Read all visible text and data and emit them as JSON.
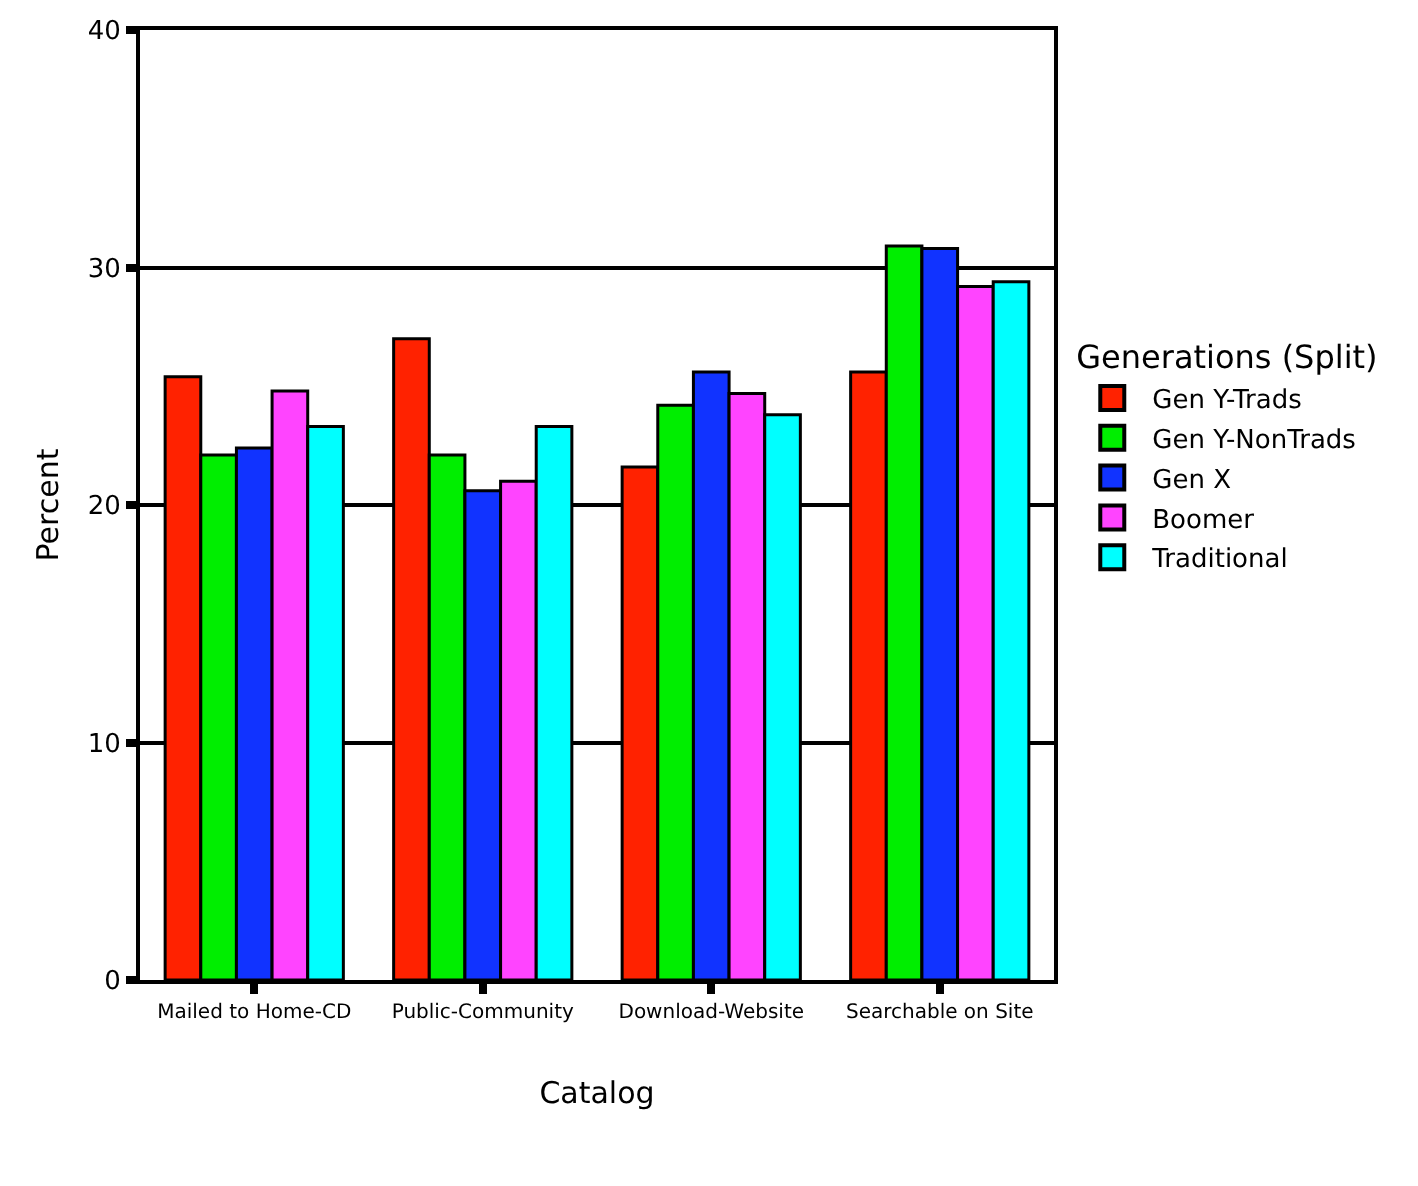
{
  "chart_data": {
    "type": "bar",
    "xlabel": "Catalog",
    "ylabel": "Percent",
    "legend_title": "Generations (Split)",
    "categories": [
      "Mailed to Home-CD",
      "Public-Community",
      "Download-Website",
      "Searchable on Site"
    ],
    "series": [
      {
        "name": "Gen Y-Trads",
        "color": "#ff2200",
        "values": [
          25.4,
          27.0,
          21.6,
          25.6
        ]
      },
      {
        "name": "Gen Y-NonTrads",
        "color": "#00ee00",
        "values": [
          22.1,
          22.1,
          24.2,
          30.9
        ]
      },
      {
        "name": "Gen X",
        "color": "#1133ff",
        "values": [
          22.4,
          20.6,
          25.6,
          30.8
        ]
      },
      {
        "name": "Boomer",
        "color": "#ff44ff",
        "values": [
          24.8,
          21.0,
          24.7,
          29.2
        ]
      },
      {
        "name": "Traditional",
        "color": "#00ffff",
        "values": [
          23.3,
          23.3,
          23.8,
          29.4
        ]
      }
    ],
    "ylim": [
      0,
      40
    ],
    "yticks": [
      0,
      10,
      20,
      30,
      40
    ],
    "grid": "y",
    "legend": "right"
  }
}
